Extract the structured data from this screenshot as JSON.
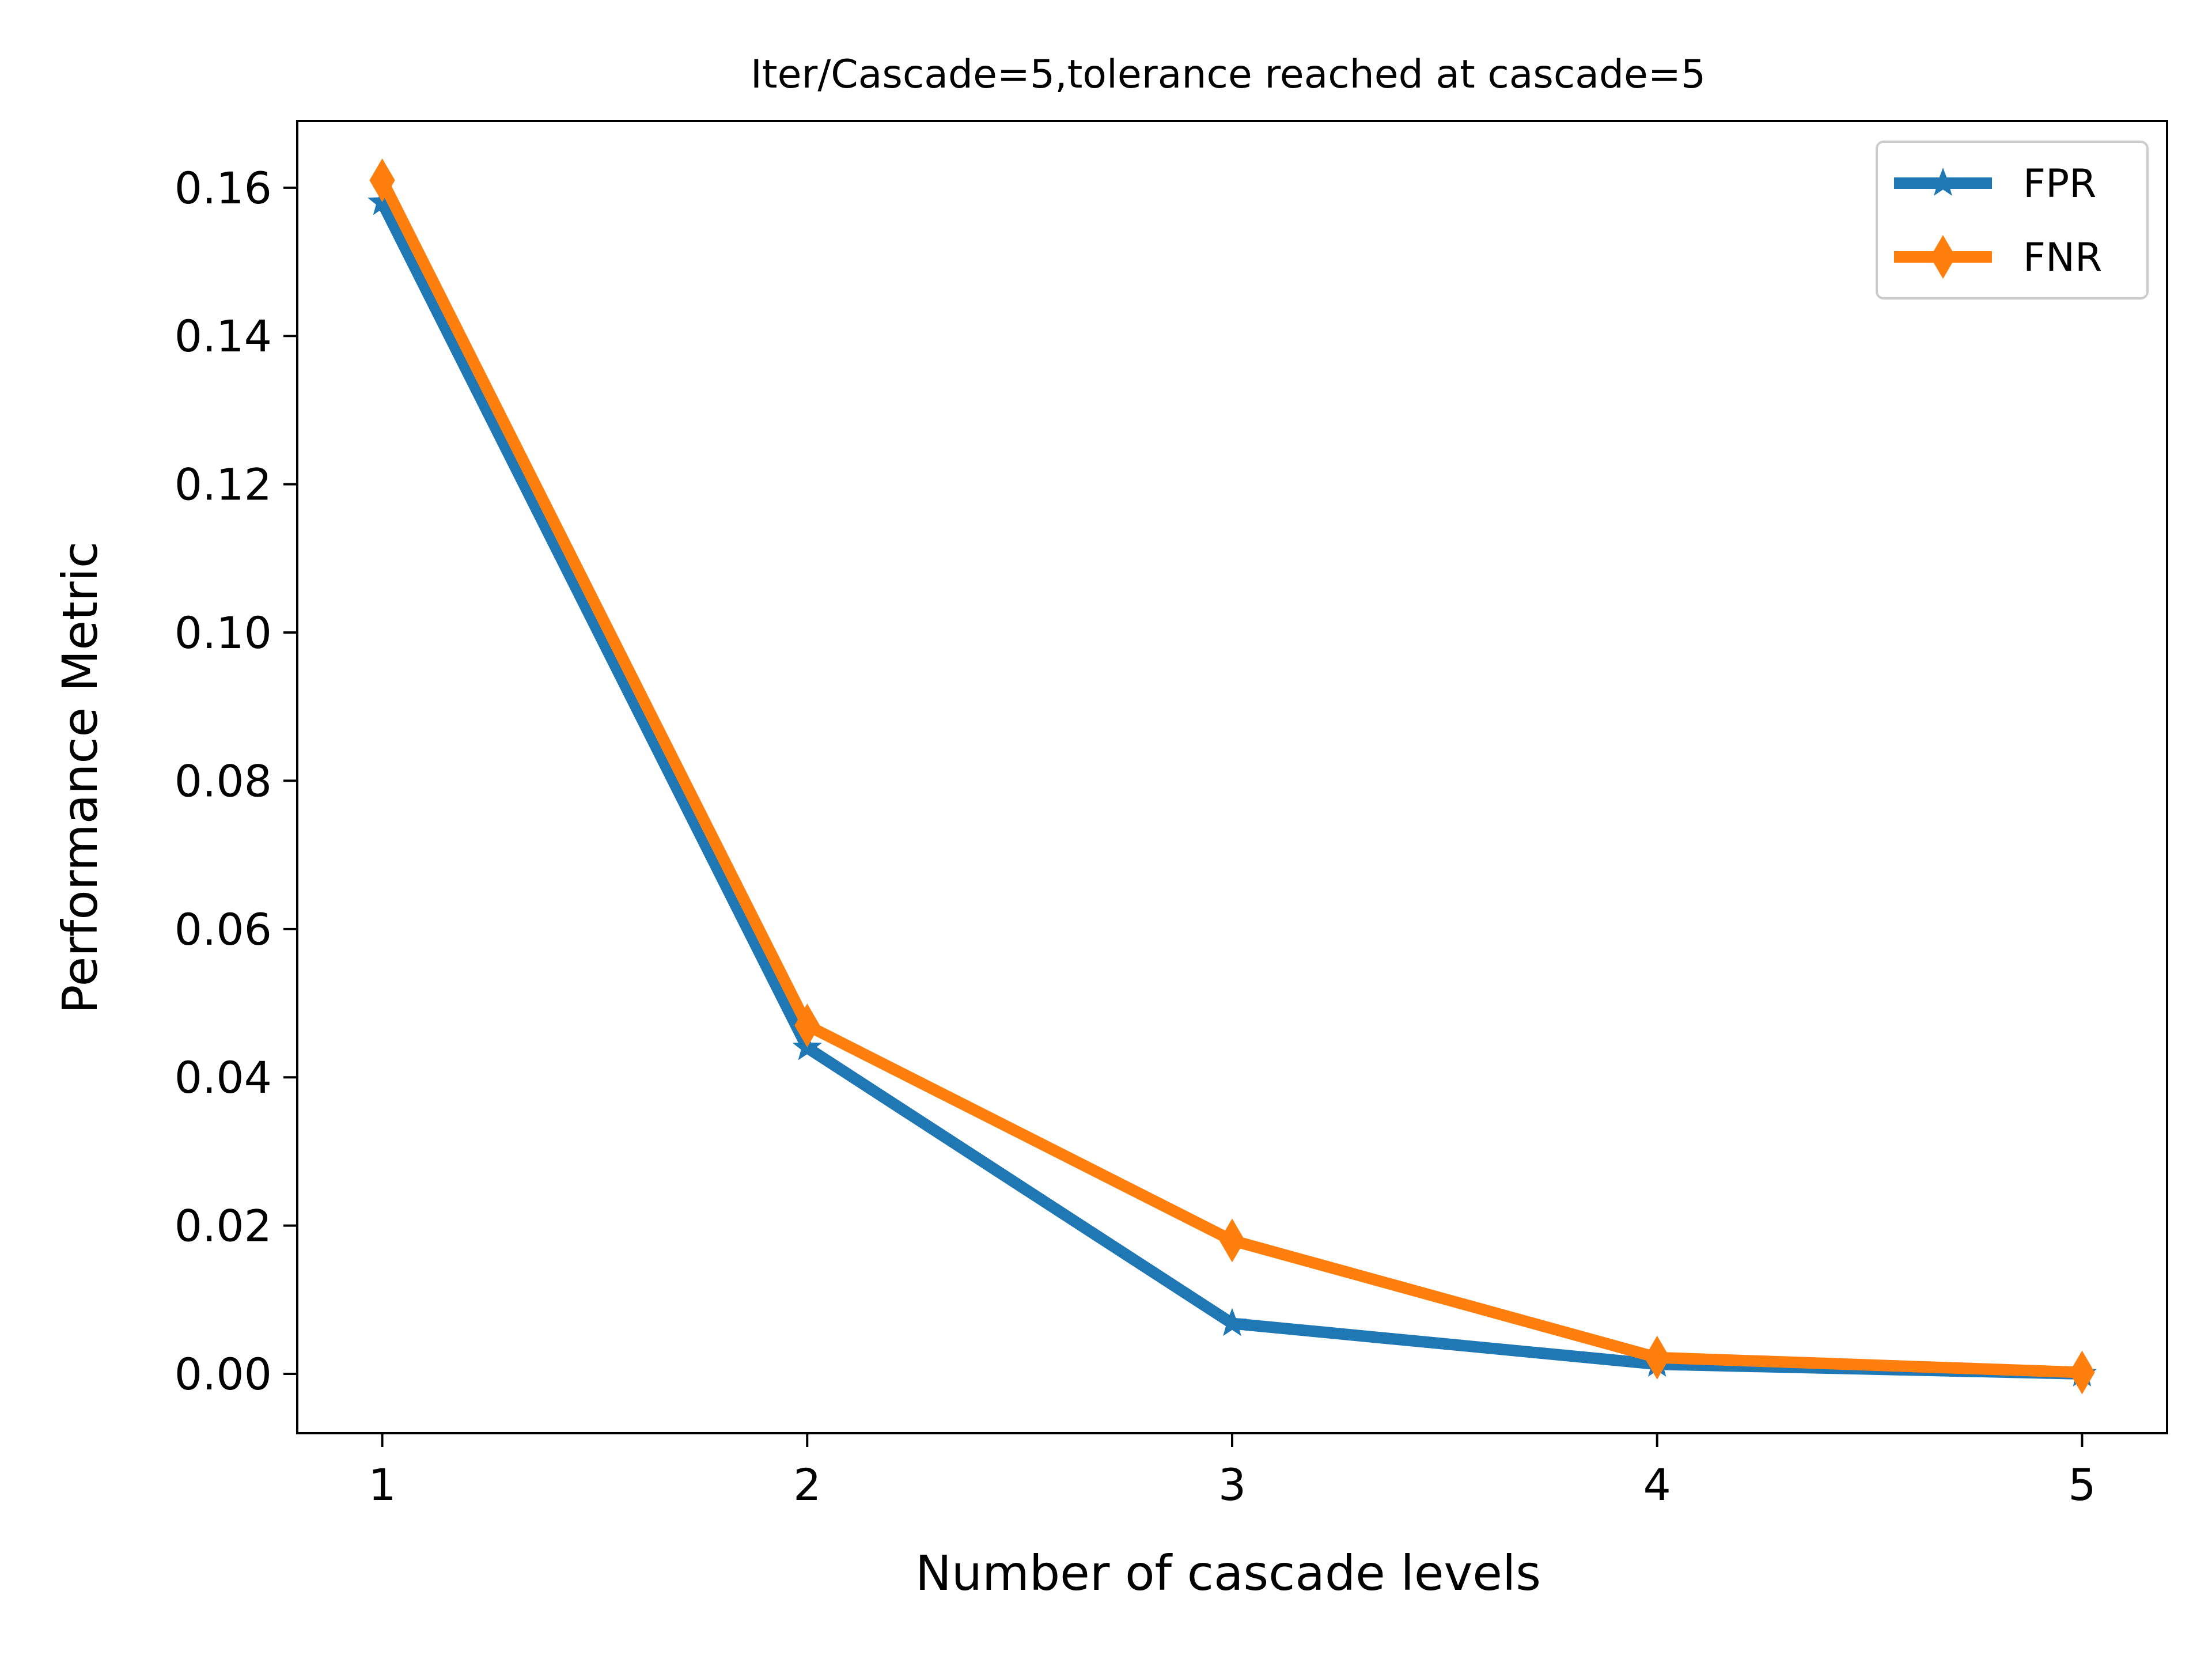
{
  "chart_data": {
    "type": "line",
    "title": "Iter/Cascade=5,tolerance reached at cascade=5",
    "xlabel": "Number of cascade levels",
    "ylabel": "Performance Metric",
    "x": [
      1,
      2,
      3,
      4,
      5
    ],
    "xlim": [
      0.8,
      5.2
    ],
    "ylim": [
      -0.008,
      0.169
    ],
    "x_ticks": [
      1,
      2,
      3,
      4,
      5
    ],
    "x_tick_labels": [
      "1",
      "2",
      "3",
      "4",
      "5"
    ],
    "y_ticks": [
      0.0,
      0.02,
      0.04,
      0.06,
      0.08,
      0.1,
      0.12,
      0.14,
      0.16
    ],
    "y_tick_labels": [
      "0.00",
      "0.02",
      "0.04",
      "0.06",
      "0.08",
      "0.10",
      "0.12",
      "0.14",
      "0.16"
    ],
    "grid": false,
    "legend_position": "top-right",
    "series": [
      {
        "name": "FPR",
        "values": [
          0.158,
          0.044,
          0.0068,
          0.0013,
          0.0
        ],
        "color": "#1f77b4",
        "marker": "star"
      },
      {
        "name": "FNR",
        "values": [
          0.161,
          0.047,
          0.018,
          0.0022,
          0.0002
        ],
        "color": "#ff7f0e",
        "marker": "diamond"
      }
    ]
  }
}
